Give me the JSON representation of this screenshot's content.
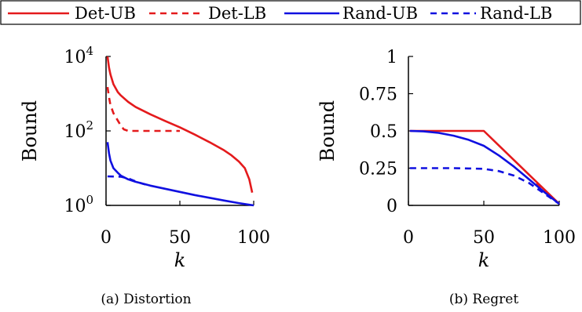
{
  "legend": {
    "entries": [
      {
        "label": "Det-UB",
        "color": "#e41a1c",
        "dash": false
      },
      {
        "label": "Det-LB",
        "color": "#e41a1c",
        "dash": true
      },
      {
        "label": "Rand-UB",
        "color": "#1010e0",
        "dash": false
      },
      {
        "label": "Rand-LB",
        "color": "#1010e0",
        "dash": true
      }
    ]
  },
  "captions": {
    "a": "(a) Distortion",
    "b": "(b) Regret"
  },
  "chart_data": [
    {
      "type": "line",
      "xlabel": "k",
      "ylabel": "Bound",
      "yscale": "log",
      "xlim": [
        0,
        100
      ],
      "ylim": [
        1,
        10000
      ],
      "xticks": [
        "0",
        "50",
        "100"
      ],
      "yticks": [
        {
          "value": 1,
          "base": "10",
          "exp": "0"
        },
        {
          "value": 100,
          "base": "10",
          "exp": "2"
        },
        {
          "value": 10000,
          "base": "10",
          "exp": "4"
        }
      ],
      "series": [
        {
          "name": "Det-UB",
          "color": "#e41a1c",
          "dash": false,
          "x": [
            1,
            2,
            3,
            5,
            8,
            10,
            15,
            20,
            30,
            40,
            50,
            60,
            70,
            80,
            85,
            90,
            94,
            97,
            99
          ],
          "y": [
            9900,
            5000,
            3300,
            1800,
            1100,
            900,
            600,
            440,
            280,
            185,
            125,
            80,
            50,
            30,
            22,
            15,
            10,
            5,
            2.2
          ]
        },
        {
          "name": "Det-LB",
          "color": "#e41a1c",
          "dash": true,
          "x": [
            1,
            2,
            3,
            5,
            8,
            10,
            12,
            15,
            20,
            30,
            40,
            50
          ],
          "y": [
            1500,
            800,
            500,
            300,
            190,
            140,
            110,
            100,
            100,
            100,
            100,
            100
          ]
        },
        {
          "name": "Rand-UB",
          "color": "#1010e0",
          "dash": false,
          "x": [
            1,
            2,
            3,
            5,
            8,
            10,
            15,
            20,
            30,
            40,
            50,
            60,
            70,
            80,
            90,
            100
          ],
          "y": [
            50,
            25,
            16,
            10,
            7.5,
            6.3,
            5.0,
            4.3,
            3.4,
            2.8,
            2.3,
            1.9,
            1.6,
            1.35,
            1.15,
            1.0
          ]
        },
        {
          "name": "Rand-LB",
          "color": "#1010e0",
          "dash": true,
          "x": [
            1,
            10,
            15,
            20,
            25,
            30
          ],
          "y": [
            6,
            5.9,
            5.3,
            4.4,
            3.8,
            3.4
          ]
        }
      ]
    },
    {
      "type": "line",
      "xlabel": "k",
      "ylabel": "Bound",
      "xlim": [
        0,
        100
      ],
      "ylim": [
        0,
        1
      ],
      "xticks": [
        "0",
        "50",
        "100"
      ],
      "yticks": [
        "0",
        "0.25",
        "0.5",
        "0.75",
        "1"
      ],
      "series": [
        {
          "name": "Det-UB",
          "color": "#e41a1c",
          "dash": false,
          "x": [
            1,
            50,
            100
          ],
          "y": [
            0.5,
            0.5,
            0.01
          ]
        },
        {
          "name": "Det-LB",
          "color": "#e41a1c",
          "dash": true,
          "x": [
            85,
            100
          ],
          "y": [
            0.15,
            0.01
          ]
        },
        {
          "name": "Rand-UB",
          "color": "#1010e0",
          "dash": false,
          "x": [
            1,
            10,
            20,
            30,
            40,
            50,
            60,
            70,
            80,
            90,
            100
          ],
          "y": [
            0.5,
            0.497,
            0.487,
            0.468,
            0.44,
            0.4,
            0.335,
            0.26,
            0.175,
            0.09,
            0.01
          ]
        },
        {
          "name": "Rand-LB",
          "color": "#1010e0",
          "dash": true,
          "x": [
            1,
            10,
            20,
            30,
            40,
            50,
            60,
            70,
            80,
            90,
            100
          ],
          "y": [
            0.25,
            0.25,
            0.25,
            0.25,
            0.248,
            0.245,
            0.23,
            0.2,
            0.15,
            0.08,
            0.01
          ]
        }
      ]
    }
  ]
}
